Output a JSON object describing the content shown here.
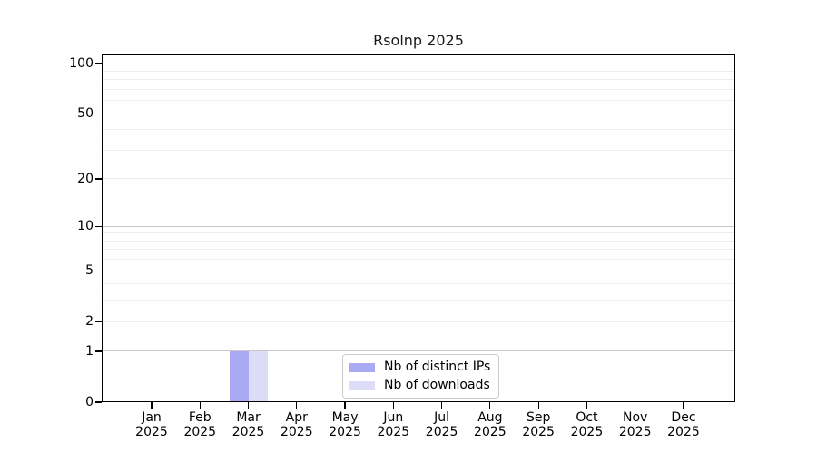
{
  "title": "Rsolnp 2025",
  "chart_data": {
    "type": "bar",
    "title": "Rsolnp 2025",
    "x_tick_months": [
      "Jan",
      "Feb",
      "Mar",
      "Apr",
      "May",
      "Jun",
      "Jul",
      "Aug",
      "Sep",
      "Oct",
      "Nov",
      "Dec"
    ],
    "x_tick_year": "2025",
    "series": [
      {
        "name": "Nb of distinct IPs",
        "color": "#a9a9f4",
        "values": [
          0,
          0,
          1,
          0,
          0,
          0,
          0,
          0,
          0,
          0,
          0,
          0
        ]
      },
      {
        "name": "Nb of downloads",
        "color": "#dcdcf9",
        "values": [
          0,
          0,
          1,
          0,
          0,
          0,
          0,
          0,
          0,
          0,
          0,
          0
        ]
      }
    ],
    "y_scale": "log1p",
    "ylim": [
      0,
      101
    ],
    "y_tick_labels": [
      0,
      1,
      2,
      5,
      10,
      20,
      50,
      100
    ],
    "y_decade_gridlines": [
      1,
      10,
      100
    ],
    "y_minor_gridlines": [
      2,
      3,
      4,
      5,
      6,
      7,
      8,
      9,
      20,
      30,
      40,
      50,
      60,
      70,
      80,
      90
    ],
    "grid": "horizontal",
    "legend_position": "lower-center-inside"
  },
  "colors": {
    "background": "#ffffff",
    "axis": "#000000",
    "text": "#000000",
    "decade_gridline": "#c8c8c8",
    "minor_gridline": "#ececec",
    "legend_border": "#cccccc"
  }
}
